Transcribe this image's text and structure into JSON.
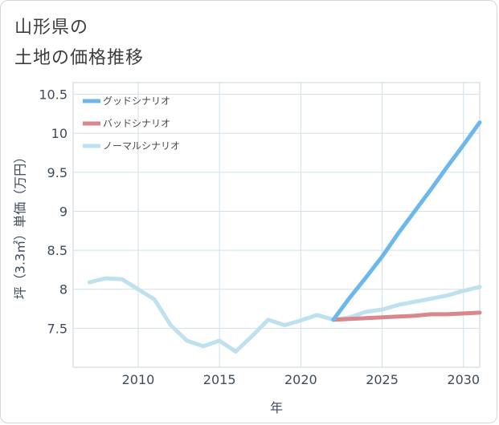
{
  "page": {
    "title_line1": "山形県の",
    "title_line2": "土地の価格推移"
  },
  "colors": {
    "good": "#6cb8ea",
    "bad": "#d9868c",
    "normal": "#bfe1ef",
    "grid": "#cfe0ea",
    "frame": "#c8d3da"
  },
  "chart_data": {
    "type": "line",
    "xlabel": "年",
    "ylabel": "坪（3.3㎡）単価（万円）",
    "xlim": [
      2006,
      2031
    ],
    "ylim": [
      7.0,
      10.65
    ],
    "xticks": [
      2010,
      2015,
      2020,
      2025,
      2030
    ],
    "xtick_labels": [
      "2010",
      "2015",
      "2020",
      "2025",
      "2030"
    ],
    "yticks": [
      7.5,
      8,
      8.5,
      9,
      9.5,
      10,
      10.5
    ],
    "ytick_labels": [
      "7.5",
      "8",
      "8.5",
      "9",
      "9.5",
      "10",
      "10.5"
    ],
    "grid": true,
    "legend_position": "top-left",
    "series": [
      {
        "name": "グッドシナリオ",
        "color_key": "good",
        "x": [
          2022,
          2023,
          2024,
          2025,
          2026,
          2027,
          2028,
          2029,
          2030,
          2031
        ],
        "y": [
          7.61,
          7.89,
          8.15,
          8.42,
          8.72,
          9.0,
          9.28,
          9.57,
          9.85,
          10.14
        ]
      },
      {
        "name": "バッドシナリオ",
        "color_key": "bad",
        "x": [
          2022,
          2023,
          2024,
          2025,
          2026,
          2027,
          2028,
          2029,
          2030,
          2031
        ],
        "y": [
          7.61,
          7.62,
          7.63,
          7.64,
          7.65,
          7.66,
          7.68,
          7.68,
          7.69,
          7.7
        ]
      },
      {
        "name": "ノーマルシナリオ",
        "color_key": "normal",
        "x": [
          2007,
          2008,
          2009,
          2010,
          2011,
          2012,
          2013,
          2014,
          2015,
          2016,
          2017,
          2018,
          2019,
          2020,
          2021,
          2022,
          2023,
          2024,
          2025,
          2026,
          2027,
          2028,
          2029,
          2030,
          2031
        ],
        "y": [
          8.09,
          8.14,
          8.13,
          8.0,
          7.87,
          7.54,
          7.34,
          7.27,
          7.34,
          7.2,
          7.4,
          7.61,
          7.54,
          7.6,
          7.67,
          7.61,
          7.64,
          7.71,
          7.74,
          7.8,
          7.84,
          7.88,
          7.92,
          7.98,
          8.03
        ]
      }
    ]
  }
}
